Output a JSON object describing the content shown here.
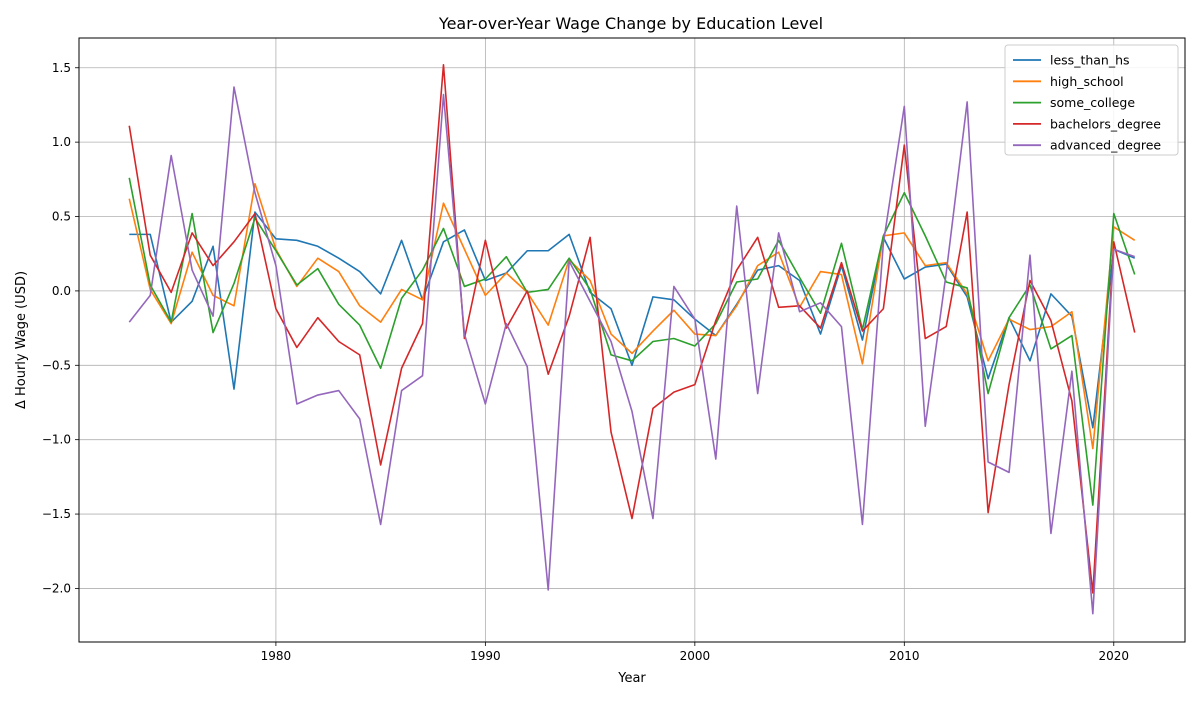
{
  "chart_data": {
    "type": "line",
    "title": "Year-over-Year Wage Change by Education Level",
    "xlabel": "Year",
    "ylabel": "Δ Hourly Wage (USD)",
    "xlim": [
      1970.6,
      1923.4
    ],
    "ylim": [
      -2.36,
      1.7
    ],
    "xticks": [
      1980,
      1990,
      2000,
      2010,
      2020
    ],
    "yticks": [
      1.5,
      1.0,
      0.5,
      0.0,
      -0.5,
      -1.0,
      -1.5,
      -2.0
    ],
    "ytick_labels": [
      "1.5",
      "1.0",
      "0.5",
      "0.0",
      "−0.5",
      "−1.0",
      "−1.5",
      "−2.0"
    ],
    "grid": true,
    "legend_position": "top-right",
    "x": [
      1973,
      1974,
      1975,
      1976,
      1977,
      1978,
      1979,
      1980,
      1981,
      1982,
      1983,
      1984,
      1985,
      1986,
      1987,
      1988,
      1989,
      1990,
      1991,
      1992,
      1993,
      1994,
      1995,
      1996,
      1997,
      1998,
      1999,
      2000,
      2001,
      2002,
      2003,
      2004,
      2005,
      2006,
      2007,
      2008,
      2009,
      2010,
      2011,
      2012,
      2013,
      2014,
      2015,
      2016,
      2017,
      2018,
      2019,
      2020,
      2021
    ],
    "series": [
      {
        "name": "less_than_hs",
        "color": "#1f77b4",
        "values": [
          0.38,
          0.38,
          -0.21,
          -0.07,
          0.3,
          -0.66,
          0.53,
          0.35,
          0.34,
          0.3,
          0.22,
          0.13,
          -0.02,
          0.34,
          -0.06,
          0.33,
          0.41,
          0.07,
          0.12,
          0.27,
          0.27,
          0.38,
          -0.01,
          -0.12,
          -0.5,
          -0.04,
          -0.06,
          -0.19,
          -0.3,
          -0.09,
          0.14,
          0.17,
          0.07,
          -0.29,
          0.17,
          -0.33,
          0.36,
          0.08,
          0.16,
          0.18,
          -0.04,
          -0.59,
          -0.18,
          -0.47,
          -0.02,
          -0.17,
          -0.92,
          0.28,
          0.22
        ]
      },
      {
        "name": "high_school",
        "color": "#ff7f0e",
        "values": [
          0.62,
          0.01,
          -0.22,
          0.26,
          -0.03,
          -0.1,
          0.72,
          0.28,
          0.03,
          0.22,
          0.13,
          -0.1,
          -0.21,
          0.01,
          -0.06,
          0.59,
          0.28,
          -0.03,
          0.12,
          -0.01,
          -0.23,
          0.21,
          0.07,
          -0.29,
          -0.42,
          -0.27,
          -0.13,
          -0.29,
          -0.3,
          -0.1,
          0.17,
          0.26,
          -0.11,
          0.13,
          0.11,
          -0.49,
          0.37,
          0.39,
          0.17,
          0.19,
          -0.02,
          -0.47,
          -0.19,
          -0.26,
          -0.24,
          -0.14,
          -1.06,
          0.43,
          0.34
        ]
      },
      {
        "name": "some_college",
        "color": "#2ca02c",
        "values": [
          0.76,
          0.04,
          -0.21,
          0.52,
          -0.28,
          0.05,
          0.49,
          0.27,
          0.04,
          0.15,
          -0.09,
          -0.23,
          -0.52,
          -0.05,
          0.14,
          0.42,
          0.03,
          0.08,
          0.23,
          -0.01,
          0.01,
          0.22,
          0.01,
          -0.43,
          -0.47,
          -0.34,
          -0.32,
          -0.37,
          -0.22,
          0.06,
          0.08,
          0.34,
          0.09,
          -0.15,
          0.32,
          -0.26,
          0.37,
          0.66,
          0.37,
          0.06,
          0.02,
          -0.69,
          -0.18,
          0.04,
          -0.39,
          -0.3,
          -1.44,
          0.52,
          0.11
        ]
      },
      {
        "name": "bachelors_degree",
        "color": "#d62728",
        "values": [
          1.11,
          0.24,
          -0.01,
          0.39,
          0.17,
          0.33,
          0.52,
          -0.12,
          -0.38,
          -0.18,
          -0.34,
          -0.43,
          -1.17,
          -0.52,
          -0.22,
          1.52,
          -0.32,
          0.34,
          -0.25,
          0.0,
          -0.56,
          -0.17,
          0.36,
          -0.95,
          -1.53,
          -0.79,
          -0.68,
          -0.63,
          -0.2,
          0.14,
          0.36,
          -0.11,
          -0.1,
          -0.25,
          0.19,
          -0.27,
          -0.12,
          0.98,
          -0.32,
          -0.24,
          0.53,
          -1.49,
          -0.63,
          0.07,
          -0.2,
          -0.74,
          -2.03,
          0.33,
          -0.28
        ]
      },
      {
        "name": "advanced_degree",
        "color": "#9467bd",
        "values": [
          -0.21,
          -0.03,
          0.91,
          0.14,
          -0.17,
          1.37,
          0.66,
          0.17,
          -0.76,
          -0.7,
          -0.67,
          -0.86,
          -1.57,
          -0.67,
          -0.57,
          1.32,
          -0.29,
          -0.76,
          -0.22,
          -0.51,
          -2.01,
          0.2,
          -0.07,
          -0.34,
          -0.81,
          -1.53,
          0.03,
          -0.19,
          -1.13,
          0.57,
          -0.69,
          0.39,
          -0.14,
          -0.08,
          -0.24,
          -1.57,
          0.32,
          1.24,
          -0.91,
          0.12,
          1.27,
          -1.15,
          -1.22,
          0.24,
          -1.63,
          -0.54,
          -2.17,
          0.28,
          0.23
        ]
      }
    ]
  }
}
